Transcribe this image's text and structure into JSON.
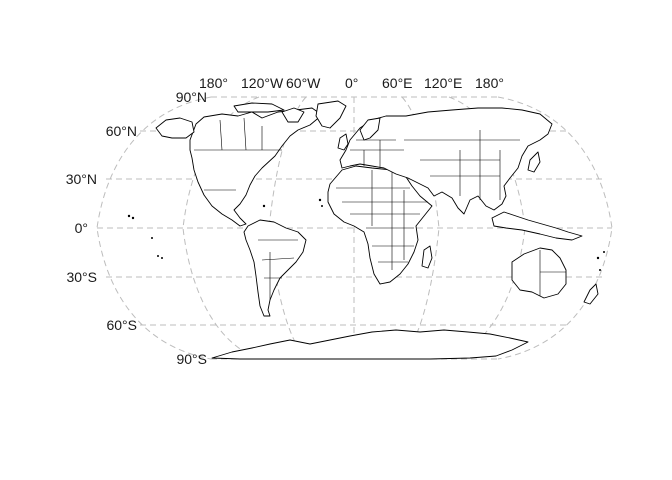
{
  "map": {
    "projection": "Robinson",
    "graticule": {
      "longitudes": [
        -180,
        -120,
        -60,
        0,
        60,
        120,
        180
      ],
      "latitudes": [
        -90,
        -60,
        -30,
        0,
        30,
        60,
        90
      ],
      "line_style": "dashed",
      "line_color": "#bdbdbd"
    },
    "x_labels": [
      "180°",
      "120°W",
      "60°W",
      "0°",
      "60°E",
      "120°E",
      "180°"
    ],
    "y_labels": [
      "90°N",
      "60°N",
      "30°N",
      "0°",
      "30°S",
      "60°S",
      "90°S"
    ],
    "land_fill": "#ffffff",
    "outline_color": "#000000",
    "background": "#ffffff"
  }
}
